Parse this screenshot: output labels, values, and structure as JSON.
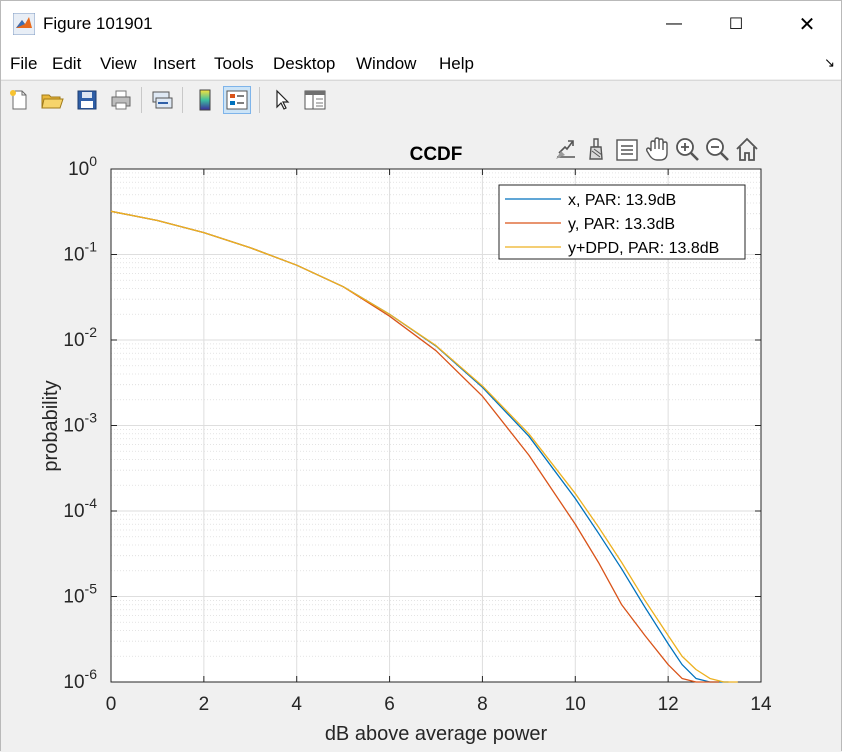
{
  "window": {
    "title": "Figure 101901",
    "controls": {
      "minimize": "—",
      "maximize": "☐",
      "close": "✕"
    }
  },
  "menu": [
    "File",
    "Edit",
    "View",
    "Insert",
    "Tools",
    "Desktop",
    "Window",
    "Help"
  ],
  "menu_dock_glyph": "↘",
  "toolbar": {
    "buttons": [
      "new-figure-icon",
      "open-icon",
      "save-icon",
      "print-icon",
      "link-plot-icon",
      "colorbar-icon",
      "legend-icon",
      "edit-plot-icon",
      "property-inspector-icon"
    ],
    "pressed": "legend-icon"
  },
  "axes_toolbar": [
    "export-icon",
    "brush-icon",
    "data-tips-icon",
    "pan-icon",
    "zoom-in-icon",
    "zoom-out-icon",
    "home-icon"
  ],
  "chart_data": {
    "type": "line",
    "title": "CCDF",
    "xlabel": "dB above average power",
    "ylabel": "probability",
    "xlim": [
      0,
      14
    ],
    "ylim": [
      1e-06,
      1
    ],
    "yscale": "log",
    "grid": "on",
    "minor_grid": "on",
    "legend_location": "top-right",
    "xticks": [
      "0",
      "2",
      "4",
      "6",
      "8",
      "10",
      "12",
      "14"
    ],
    "yticks": [
      {
        "base": "10",
        "exp": "0"
      },
      {
        "base": "10",
        "exp": "-1"
      },
      {
        "base": "10",
        "exp": "-2"
      },
      {
        "base": "10",
        "exp": "-3"
      },
      {
        "base": "10",
        "exp": "-4"
      },
      {
        "base": "10",
        "exp": "-5"
      },
      {
        "base": "10",
        "exp": "-6"
      }
    ],
    "series": [
      {
        "name": "x, PAR: 13.9dB",
        "color": "#0072bd",
        "x": [
          0,
          1,
          2,
          3,
          4,
          5,
          6,
          7,
          8,
          9,
          10,
          10.5,
          11,
          11.5,
          12,
          12.3,
          12.6,
          12.9,
          13.1,
          13.3
        ],
        "y": [
          0.32,
          0.25,
          0.18,
          0.12,
          0.075,
          0.042,
          0.02,
          0.0085,
          0.0028,
          0.00075,
          0.00014,
          5.5e-05,
          2.1e-05,
          7.5e-06,
          2.8e-06,
          1.6e-06,
          1.1e-06,
          1e-06,
          1e-06,
          1e-06
        ]
      },
      {
        "name": "y, PAR: 13.3dB",
        "color": "#d95319",
        "x": [
          0,
          1,
          2,
          3,
          4,
          5,
          6,
          7,
          8,
          9,
          10,
          10.5,
          11,
          11.5,
          12,
          12.3,
          12.6,
          12.9,
          13.1
        ],
        "y": [
          0.32,
          0.25,
          0.18,
          0.12,
          0.075,
          0.042,
          0.019,
          0.0075,
          0.0022,
          0.00045,
          7e-05,
          2.5e-05,
          8e-06,
          3.5e-06,
          1.6e-06,
          1.1e-06,
          1e-06,
          1e-06,
          1e-06
        ]
      },
      {
        "name": "y+DPD, PAR: 13.8dB",
        "color": "#edb120",
        "x": [
          0,
          1,
          2,
          3,
          4,
          5,
          6,
          7,
          8,
          9,
          10,
          10.5,
          11,
          11.5,
          12,
          12.3,
          12.6,
          12.9,
          13.2,
          13.5
        ],
        "y": [
          0.32,
          0.25,
          0.18,
          0.12,
          0.075,
          0.042,
          0.02,
          0.0086,
          0.0029,
          0.0008,
          0.00016,
          6.5e-05,
          2.5e-05,
          9e-06,
          3.5e-06,
          2e-06,
          1.4e-06,
          1.1e-06,
          1e-06,
          1e-06
        ]
      }
    ]
  }
}
